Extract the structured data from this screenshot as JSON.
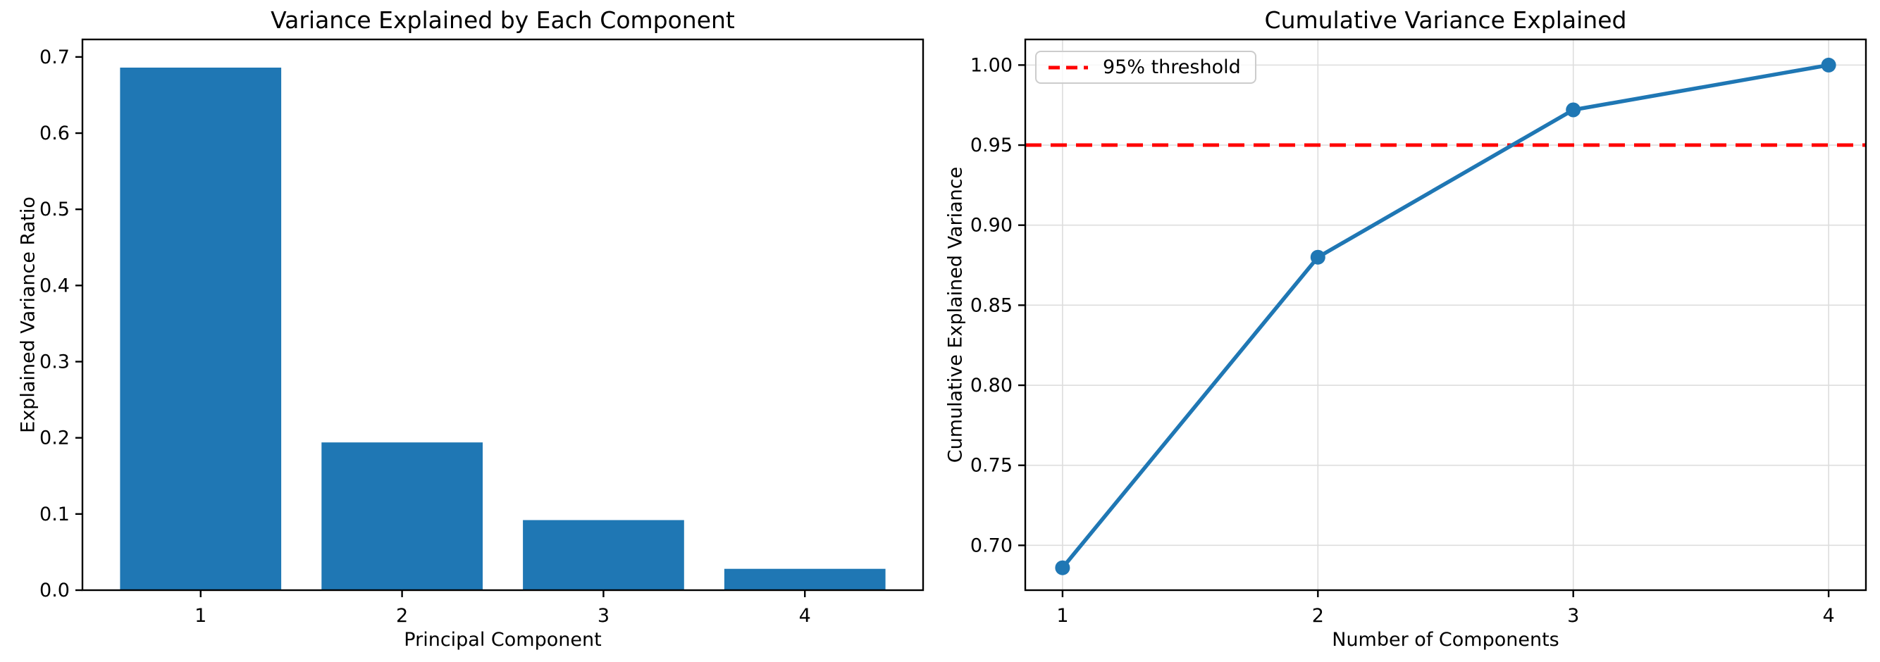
{
  "figure": {
    "background": "#ffffff",
    "text_color": "#000000",
    "grid_color": "#dddddd"
  },
  "chart_data": [
    {
      "type": "bar",
      "title": "Variance Explained by Each Component",
      "xlabel": "Principal Component",
      "ylabel": "Explained Variance Ratio",
      "categories": [
        "1",
        "2",
        "3",
        "4"
      ],
      "values": [
        0.686,
        0.194,
        0.092,
        0.028
      ],
      "bar_color": "#1f77b4",
      "bar_width": 0.8,
      "ylim": [
        0.0,
        0.723
      ],
      "xlim": [
        0.413,
        4.587
      ],
      "ytick_values": [
        0.0,
        0.1,
        0.2,
        0.3,
        0.4,
        0.5,
        0.6,
        0.7
      ],
      "ytick_labels": [
        "0.0",
        "0.1",
        "0.2",
        "0.3",
        "0.4",
        "0.5",
        "0.6",
        "0.7"
      ],
      "xtick_values": [
        1,
        2,
        3,
        4
      ],
      "xtick_labels": [
        "1",
        "2",
        "3",
        "4"
      ],
      "grid": false,
      "legend": null
    },
    {
      "type": "line",
      "title": "Cumulative Variance Explained",
      "xlabel": "Number of Components",
      "ylabel": "Cumulative Explained Variance",
      "x": [
        1,
        2,
        3,
        4
      ],
      "y": [
        0.686,
        0.88,
        0.972,
        1.0
      ],
      "line_color": "#1f77b4",
      "marker": "circle",
      "xlim": [
        0.854,
        4.146
      ],
      "ylim": [
        0.672,
        1.016
      ],
      "xtick_values": [
        1,
        2,
        3,
        4
      ],
      "xtick_labels": [
        "1",
        "2",
        "3",
        "4"
      ],
      "ytick_values": [
        0.7,
        0.75,
        0.8,
        0.85,
        0.9,
        0.95,
        1.0
      ],
      "ytick_labels": [
        "0.70",
        "0.75",
        "0.80",
        "0.85",
        "0.90",
        "0.95",
        "1.00"
      ],
      "grid": true,
      "threshold": {
        "value": 0.95,
        "color": "#ff0000",
        "style": "dashed"
      },
      "legend": {
        "label": "95% threshold",
        "position": "upper left"
      }
    }
  ]
}
